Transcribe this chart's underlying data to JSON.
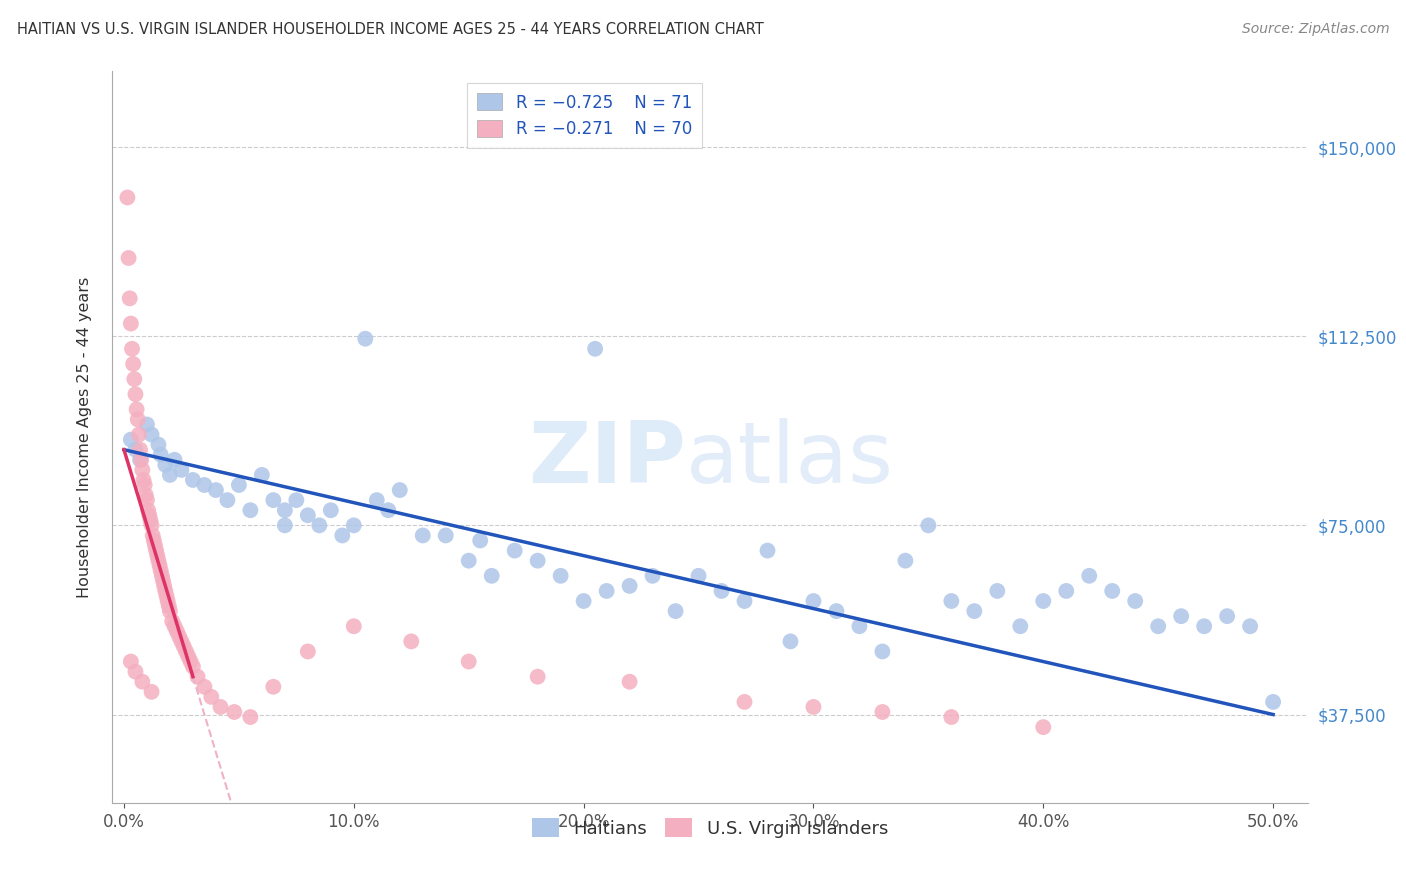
{
  "title": "HAITIAN VS U.S. VIRGIN ISLANDER HOUSEHOLDER INCOME AGES 25 - 44 YEARS CORRELATION CHART",
  "source": "Source: ZipAtlas.com",
  "ylabel": "Householder Income Ages 25 - 44 years",
  "ytick_labels": [
    "$37,500",
    "$75,000",
    "$112,500",
    "$150,000"
  ],
  "ytick_values": [
    37500,
    75000,
    112500,
    150000
  ],
  "legend_R_blue": "R = −0.725",
  "legend_N_blue": "N = 71",
  "legend_R_pink": "R = −0.271",
  "legend_N_pink": "N = 70",
  "blue_color": "#aec6e8",
  "pink_color": "#f4afc0",
  "blue_line_color": "#2255bb",
  "pink_line_color": "#dd3366",
  "pink_line_dashed_color": "#f0b0c8",
  "blue_legend_color": "#aec6e8",
  "pink_legend_color": "#f4afc0",
  "haitians_x": [
    0.3,
    0.5,
    0.7,
    1.0,
    1.2,
    1.5,
    1.6,
    1.8,
    2.0,
    2.2,
    2.5,
    3.0,
    3.5,
    4.0,
    4.5,
    5.0,
    5.5,
    6.0,
    6.5,
    7.0,
    8.0,
    9.0,
    10.0,
    10.5,
    11.0,
    12.0,
    13.0,
    14.0,
    15.0,
    16.0,
    17.0,
    18.0,
    19.0,
    20.0,
    21.0,
    22.0,
    23.0,
    24.0,
    25.0,
    26.0,
    27.0,
    28.0,
    29.0,
    30.0,
    31.0,
    32.0,
    33.0,
    34.0,
    35.0,
    36.0,
    37.0,
    38.0,
    39.0,
    40.0,
    41.0,
    42.0,
    43.0,
    44.0,
    45.0,
    46.0,
    47.0,
    48.0,
    49.0,
    50.0,
    7.0,
    7.5,
    8.5,
    9.5,
    11.5,
    15.5,
    20.5
  ],
  "haitians_y": [
    92000,
    90000,
    88000,
    95000,
    93000,
    91000,
    89000,
    87000,
    85000,
    88000,
    86000,
    84000,
    83000,
    82000,
    80000,
    83000,
    78000,
    85000,
    80000,
    75000,
    77000,
    78000,
    75000,
    112000,
    80000,
    82000,
    73000,
    73000,
    68000,
    65000,
    70000,
    68000,
    65000,
    60000,
    62000,
    63000,
    65000,
    58000,
    65000,
    62000,
    60000,
    70000,
    52000,
    60000,
    58000,
    55000,
    50000,
    68000,
    75000,
    60000,
    58000,
    62000,
    55000,
    60000,
    62000,
    65000,
    62000,
    60000,
    55000,
    57000,
    55000,
    57000,
    55000,
    40000,
    78000,
    80000,
    75000,
    73000,
    78000,
    72000,
    110000
  ],
  "vi_x": [
    0.15,
    0.2,
    0.25,
    0.3,
    0.35,
    0.4,
    0.45,
    0.5,
    0.55,
    0.6,
    0.65,
    0.7,
    0.75,
    0.8,
    0.85,
    0.9,
    0.95,
    1.0,
    1.05,
    1.1,
    1.15,
    1.2,
    1.25,
    1.3,
    1.35,
    1.4,
    1.45,
    1.5,
    1.55,
    1.6,
    1.65,
    1.7,
    1.75,
    1.8,
    1.85,
    1.9,
    1.95,
    2.0,
    2.1,
    2.2,
    2.3,
    2.4,
    2.5,
    2.6,
    2.7,
    2.8,
    2.9,
    3.0,
    3.2,
    3.5,
    3.8,
    4.2,
    4.8,
    5.5,
    6.5,
    8.0,
    10.0,
    12.5,
    15.0,
    18.0,
    22.0,
    27.0,
    30.0,
    33.0,
    36.0,
    40.0,
    0.3,
    0.5,
    0.8,
    1.2
  ],
  "vi_y": [
    140000,
    128000,
    120000,
    115000,
    110000,
    107000,
    104000,
    101000,
    98000,
    96000,
    93000,
    90000,
    88000,
    86000,
    84000,
    83000,
    81000,
    80000,
    78000,
    77000,
    76000,
    75000,
    73000,
    72000,
    71000,
    70000,
    69000,
    68000,
    67000,
    66000,
    65000,
    64000,
    63000,
    62000,
    61000,
    60000,
    59000,
    58000,
    56000,
    55000,
    54000,
    53000,
    52000,
    51000,
    50000,
    49000,
    48000,
    47000,
    45000,
    43000,
    41000,
    39000,
    38000,
    37000,
    43000,
    50000,
    55000,
    52000,
    48000,
    45000,
    44000,
    40000,
    39000,
    38000,
    37000,
    35000,
    48000,
    46000,
    44000,
    42000
  ]
}
